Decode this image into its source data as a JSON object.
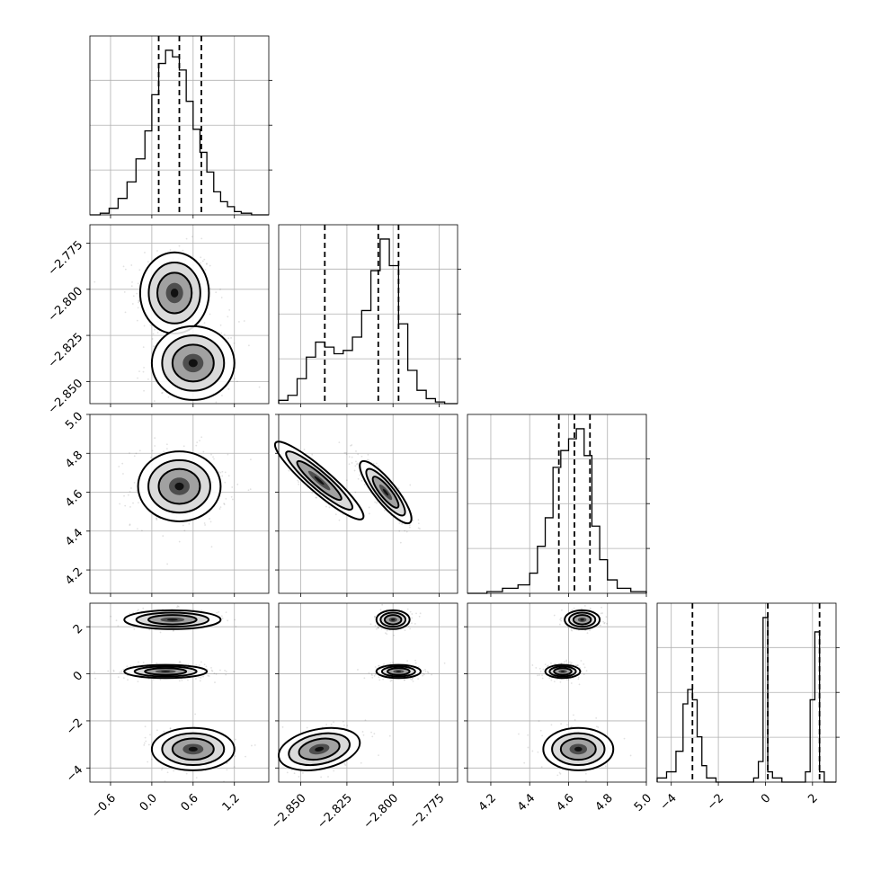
{
  "chart_data": {
    "type": "corner",
    "parameters": [
      {
        "range": [
          -0.9,
          1.7
        ],
        "ticks": [
          {
            "v": -0.6,
            "label": "−0.6"
          },
          {
            "v": 0.0,
            "label": "0.0"
          },
          {
            "v": 0.6,
            "label": "0.6"
          },
          {
            "v": 1.2,
            "label": "1.2"
          }
        ],
        "quantiles": [
          0.1,
          0.4,
          0.72
        ],
        "histogram": {
          "edges": [
            -0.9,
            -0.75,
            -0.62,
            -0.49,
            -0.36,
            -0.23,
            -0.1,
            0.0,
            0.1,
            0.2,
            0.3,
            0.4,
            0.5,
            0.6,
            0.7,
            0.8,
            0.9,
            1.0,
            1.1,
            1.2,
            1.3,
            1.45,
            1.6,
            1.7
          ],
          "counts": [
            0,
            0.01,
            0.04,
            0.1,
            0.2,
            0.34,
            0.51,
            0.73,
            0.92,
            1.0,
            0.96,
            0.88,
            0.69,
            0.52,
            0.38,
            0.26,
            0.14,
            0.08,
            0.05,
            0.02,
            0.01,
            0,
            0
          ]
        }
      },
      {
        "range": [
          -2.862,
          -2.765
        ],
        "ticks": [
          {
            "v": -2.775,
            "label": "−2.775"
          },
          {
            "v": -2.8,
            "label": "−2.800"
          },
          {
            "v": -2.825,
            "label": "−2.825"
          },
          {
            "v": -2.85,
            "label": "−2.850"
          }
        ],
        "ticks_x": [
          {
            "v": -2.85,
            "label": "−2.850"
          },
          {
            "v": -2.825,
            "label": "−2.825"
          },
          {
            "v": -2.8,
            "label": "−2.800"
          },
          {
            "v": -2.775,
            "label": "−2.775"
          }
        ],
        "quantiles": [
          -2.837,
          -2.808,
          -2.797
        ],
        "histogram": {
          "edges": [
            -2.862,
            -2.857,
            -2.852,
            -2.847,
            -2.842,
            -2.837,
            -2.832,
            -2.827,
            -2.822,
            -2.817,
            -2.812,
            -2.807,
            -2.802,
            -2.797,
            -2.792,
            -2.787,
            -2.782,
            -2.777,
            -2.772,
            -2.765
          ],
          "counts": [
            0.02,
            0.05,
            0.15,
            0.28,
            0.37,
            0.34,
            0.3,
            0.32,
            0.4,
            0.56,
            0.8,
            0.99,
            0.83,
            0.48,
            0.2,
            0.08,
            0.03,
            0.01,
            0
          ]
        }
      },
      {
        "range": [
          4.08,
          5.0
        ],
        "ticks": [
          {
            "v": 4.2,
            "label": "4.2"
          },
          {
            "v": 4.4,
            "label": "4.4"
          },
          {
            "v": 4.6,
            "label": "4.6"
          },
          {
            "v": 4.8,
            "label": "4.8"
          },
          {
            "v": 5.0,
            "label": "5.0"
          }
        ],
        "quantiles": [
          4.55,
          4.63,
          4.71
        ],
        "histogram": {
          "edges": [
            4.08,
            4.18,
            4.26,
            4.34,
            4.4,
            4.44,
            4.48,
            4.52,
            4.56,
            4.6,
            4.64,
            4.68,
            4.72,
            4.76,
            4.8,
            4.85,
            4.92,
            5.0
          ],
          "counts": [
            0,
            0.01,
            0.03,
            0.05,
            0.12,
            0.28,
            0.45,
            0.75,
            0.85,
            0.92,
            0.98,
            0.82,
            0.4,
            0.2,
            0.08,
            0.03,
            0.01
          ]
        }
      },
      {
        "range": [
          -4.6,
          3.0
        ],
        "ticks": [
          {
            "v": -4,
            "label": "−4"
          },
          {
            "v": -2,
            "label": "−2"
          },
          {
            "v": 0,
            "label": "0"
          },
          {
            "v": 2,
            "label": "2"
          }
        ],
        "quantiles": [
          -3.1,
          0.1,
          2.3
        ],
        "histogram": {
          "edges": [
            -4.6,
            -4.2,
            -3.8,
            -3.5,
            -3.3,
            -3.1,
            -2.9,
            -2.7,
            -2.5,
            -2.1,
            -0.5,
            -0.3,
            -0.1,
            0.1,
            0.3,
            0.7,
            1.7,
            1.9,
            2.1,
            2.3,
            2.5,
            3.0
          ],
          "counts": [
            0.02,
            0.05,
            0.15,
            0.38,
            0.45,
            0.4,
            0.22,
            0.08,
            0.02,
            0,
            0.02,
            0.1,
            0.8,
            0.05,
            0.02,
            0,
            0.05,
            0.4,
            0.73,
            0.05,
            0
          ]
        }
      }
    ],
    "pairs": [
      {
        "row": 1,
        "col": 0,
        "modes": [
          {
            "x": 0.33,
            "y": -2.802,
            "sx": 0.25,
            "sy": 0.011,
            "rho": 0.0,
            "w": 1.0
          },
          {
            "x": 0.6,
            "y": -2.84,
            "sx": 0.3,
            "sy": 0.01,
            "rho": 0.0,
            "w": 0.45
          }
        ]
      },
      {
        "row": 2,
        "col": 0,
        "modes": [
          {
            "x": 0.4,
            "y": 4.63,
            "sx": 0.3,
            "sy": 0.09,
            "rho": 0.0,
            "w": 1.0
          }
        ]
      },
      {
        "row": 2,
        "col": 1,
        "modes": [
          {
            "x": -2.804,
            "y": 4.6,
            "sx": 0.007,
            "sy": 0.08,
            "rho": -0.85,
            "w": 1.0
          },
          {
            "x": -2.84,
            "y": 4.66,
            "sx": 0.012,
            "sy": 0.1,
            "rho": -0.92,
            "w": 0.4
          }
        ]
      },
      {
        "row": 3,
        "col": 0,
        "modes": [
          {
            "x": 0.3,
            "y": 2.3,
            "sx": 0.35,
            "sy": 0.2,
            "rho": 0.0,
            "w": 0.45
          },
          {
            "x": 0.2,
            "y": 0.1,
            "sx": 0.3,
            "sy": 0.14,
            "rho": 0.0,
            "w": 0.8
          },
          {
            "x": 0.6,
            "y": -3.2,
            "sx": 0.3,
            "sy": 0.45,
            "rho": 0.0,
            "w": 0.55
          }
        ]
      },
      {
        "row": 3,
        "col": 1,
        "modes": [
          {
            "x": -2.8,
            "y": 2.3,
            "sx": 0.0045,
            "sy": 0.2,
            "rho": 0.0,
            "w": 0.55
          },
          {
            "x": -2.797,
            "y": 0.1,
            "sx": 0.006,
            "sy": 0.14,
            "rho": 0.0,
            "w": 0.8
          },
          {
            "x": -2.84,
            "y": -3.2,
            "sx": 0.011,
            "sy": 0.45,
            "rho": 0.3,
            "w": 0.55
          }
        ]
      },
      {
        "row": 3,
        "col": 2,
        "modes": [
          {
            "x": 4.67,
            "y": 2.3,
            "sx": 0.045,
            "sy": 0.2,
            "rho": 0.0,
            "w": 0.55
          },
          {
            "x": 4.57,
            "y": 0.1,
            "sx": 0.045,
            "sy": 0.14,
            "rho": 0.0,
            "w": 0.8
          },
          {
            "x": 4.65,
            "y": -3.2,
            "sx": 0.09,
            "sy": 0.45,
            "rho": 0.0,
            "w": 0.55
          }
        ]
      }
    ],
    "grid": true,
    "quantile_style": "dashed"
  }
}
